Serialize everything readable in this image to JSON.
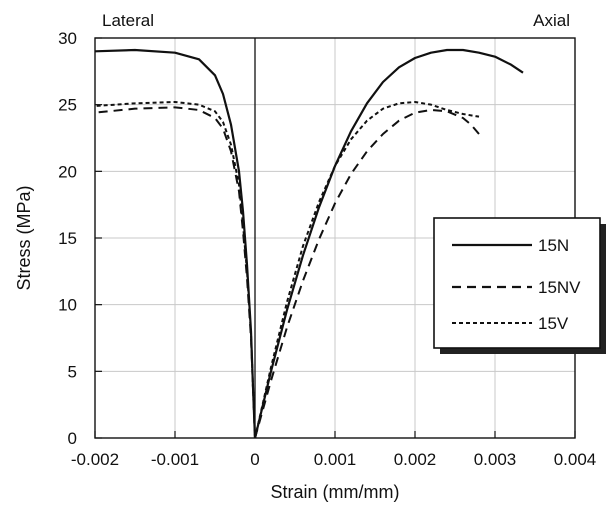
{
  "chart_data": {
    "type": "line",
    "xlabel": "Strain (mm/mm)",
    "ylabel": "Stress (MPa)",
    "xlim": [
      -0.002,
      0.004
    ],
    "ylim": [
      0,
      30
    ],
    "x_ticks": [
      -0.002,
      -0.001,
      0,
      0.001,
      0.002,
      0.003,
      0.004
    ],
    "x_tick_labels": [
      "-0.002",
      "-0.001",
      "0",
      "0.001",
      "0.002",
      "0.003",
      "0.004"
    ],
    "y_ticks": [
      0,
      5,
      10,
      15,
      20,
      25,
      30
    ],
    "y_tick_labels": [
      "0",
      "5",
      "10",
      "15",
      "20",
      "25",
      "30"
    ],
    "grid": true,
    "legend_position": "right",
    "annotations": {
      "left": "Lateral",
      "right": "Axial"
    },
    "series": [
      {
        "name": "15N",
        "style": "solid",
        "lateral": [
          [
            0,
            0
          ],
          [
            -2e-05,
            3
          ],
          [
            -5e-05,
            8
          ],
          [
            -0.0001,
            13
          ],
          [
            -0.00015,
            17
          ],
          [
            -0.0002,
            20
          ],
          [
            -0.0003,
            23.5
          ],
          [
            -0.0004,
            25.8
          ],
          [
            -0.0005,
            27.2
          ],
          [
            -0.0007,
            28.4
          ],
          [
            -0.001,
            28.9
          ],
          [
            -0.0015,
            29.1
          ],
          [
            -0.002,
            29.0
          ]
        ],
        "axial": [
          [
            0,
            0
          ],
          [
            0.0002,
            5
          ],
          [
            0.0004,
            9.6
          ],
          [
            0.0006,
            13.7
          ],
          [
            0.0008,
            17.3
          ],
          [
            0.001,
            20.4
          ],
          [
            0.0012,
            23
          ],
          [
            0.0014,
            25.1
          ],
          [
            0.0016,
            26.7
          ],
          [
            0.0018,
            27.8
          ],
          [
            0.002,
            28.5
          ],
          [
            0.0022,
            28.9
          ],
          [
            0.0024,
            29.1
          ],
          [
            0.0026,
            29.1
          ],
          [
            0.0028,
            28.9
          ],
          [
            0.003,
            28.6
          ],
          [
            0.0032,
            28.0
          ],
          [
            0.00335,
            27.4
          ]
        ]
      },
      {
        "name": "15NV",
        "style": "dashed",
        "lateral": [
          [
            0,
            0
          ],
          [
            -2e-05,
            3
          ],
          [
            -5e-05,
            7.5
          ],
          [
            -0.0001,
            12
          ],
          [
            -0.00015,
            15.5
          ],
          [
            -0.0002,
            18.5
          ],
          [
            -0.0003,
            21.5
          ],
          [
            -0.0004,
            23.2
          ],
          [
            -0.0005,
            24.0
          ],
          [
            -0.0007,
            24.6
          ],
          [
            -0.001,
            24.8
          ],
          [
            -0.0015,
            24.7
          ],
          [
            -0.002,
            24.4
          ]
        ],
        "axial": [
          [
            0,
            0
          ],
          [
            0.0002,
            4.3
          ],
          [
            0.0004,
            8.3
          ],
          [
            0.0006,
            11.8
          ],
          [
            0.0008,
            14.9
          ],
          [
            0.001,
            17.6
          ],
          [
            0.0012,
            19.8
          ],
          [
            0.0014,
            21.5
          ],
          [
            0.0016,
            22.8
          ],
          [
            0.0018,
            23.8
          ],
          [
            0.002,
            24.4
          ],
          [
            0.0022,
            24.6
          ],
          [
            0.0024,
            24.5
          ],
          [
            0.0026,
            24.0
          ],
          [
            0.0027,
            23.5
          ],
          [
            0.0028,
            22.8
          ]
        ]
      },
      {
        "name": "15V",
        "style": "dotted",
        "lateral": [
          [
            0,
            0
          ],
          [
            -2e-05,
            3
          ],
          [
            -5e-05,
            7.8
          ],
          [
            -0.0001,
            12.5
          ],
          [
            -0.00015,
            16
          ],
          [
            -0.0002,
            19
          ],
          [
            -0.0003,
            22
          ],
          [
            -0.0004,
            23.7
          ],
          [
            -0.0005,
            24.5
          ],
          [
            -0.0007,
            25.0
          ],
          [
            -0.001,
            25.2
          ],
          [
            -0.0015,
            25.1
          ],
          [
            -0.002,
            24.9
          ]
        ],
        "axial": [
          [
            0,
            0
          ],
          [
            0.0002,
            5.3
          ],
          [
            0.0004,
            10.2
          ],
          [
            0.0006,
            14.4
          ],
          [
            0.0008,
            17.7
          ],
          [
            0.001,
            20.4
          ],
          [
            0.0012,
            22.4
          ],
          [
            0.0014,
            23.8
          ],
          [
            0.0016,
            24.7
          ],
          [
            0.0018,
            25.1
          ],
          [
            0.002,
            25.2
          ],
          [
            0.0022,
            25.0
          ],
          [
            0.0024,
            24.6
          ],
          [
            0.0026,
            24.3
          ],
          [
            0.0028,
            24.1
          ]
        ]
      }
    ]
  },
  "colors": {
    "line": "#111111",
    "grid": "#c8c8c8",
    "background": "#ffffff"
  }
}
